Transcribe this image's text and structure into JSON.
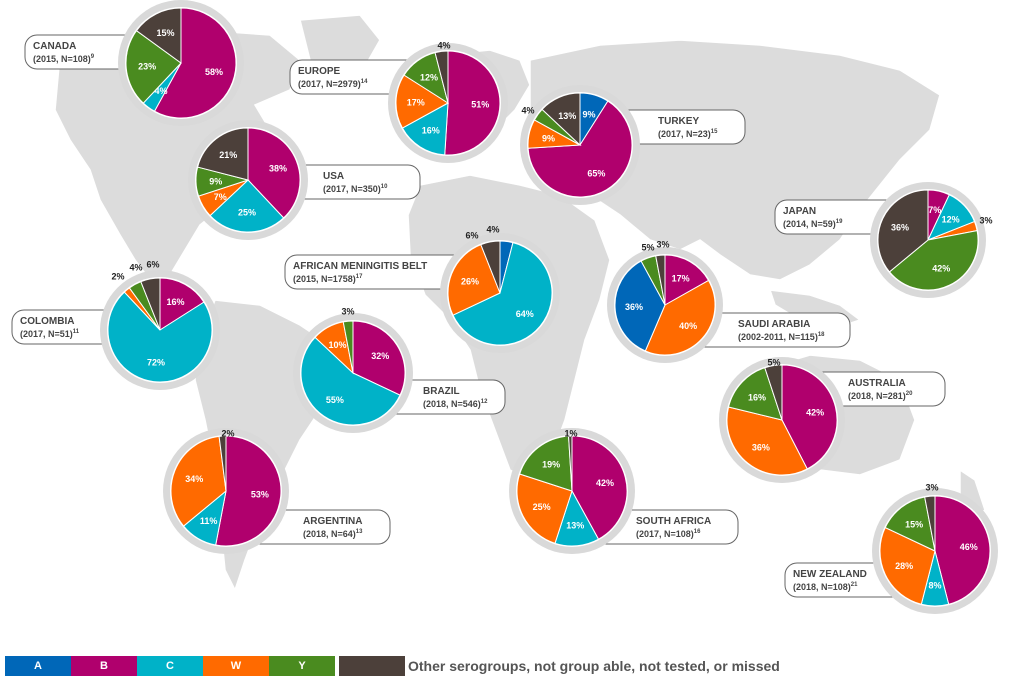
{
  "colors": {
    "A": "#0067b8",
    "B": "#b0006d",
    "C": "#00b2c8",
    "W": "#ff6a00",
    "Y": "#4a8b1f",
    "Other": "#4c403a"
  },
  "legend": {
    "items": [
      {
        "key": "A",
        "label": "A"
      },
      {
        "key": "B",
        "label": "B"
      },
      {
        "key": "C",
        "label": "C"
      },
      {
        "key": "W",
        "label": "W"
      },
      {
        "key": "Y",
        "label": "Y"
      },
      {
        "key": "Other",
        "label": ""
      }
    ],
    "other_text": "Other serogroups, not group able, not tested, or missed"
  },
  "chart_data": [
    {
      "type": "pie",
      "name": "CANADA",
      "subtitle": "(2015, N=108)",
      "sup": "9",
      "slices": [
        {
          "key": "B",
          "value": 58
        },
        {
          "key": "C",
          "value": 4
        },
        {
          "key": "Y",
          "value": 23
        },
        {
          "key": "Other",
          "value": 15
        }
      ]
    },
    {
      "type": "pie",
      "name": "EUROPE",
      "subtitle": "(2017, N=2979)",
      "sup": "14",
      "slices": [
        {
          "key": "B",
          "value": 51
        },
        {
          "key": "C",
          "value": 16
        },
        {
          "key": "W",
          "value": 17
        },
        {
          "key": "Y",
          "value": 12
        },
        {
          "key": "Other",
          "value": 4
        }
      ]
    },
    {
      "type": "pie",
      "name": "TURKEY",
      "subtitle": "(2017, N=23)",
      "sup": "15",
      "slices": [
        {
          "key": "A",
          "value": 9
        },
        {
          "key": "B",
          "value": 65
        },
        {
          "key": "W",
          "value": 9
        },
        {
          "key": "Y",
          "value": 4
        },
        {
          "key": "Other",
          "value": 13
        }
      ]
    },
    {
      "type": "pie",
      "name": "USA",
      "subtitle": "(2017, N=350)",
      "sup": "10",
      "slices": [
        {
          "key": "B",
          "value": 38
        },
        {
          "key": "C",
          "value": 25
        },
        {
          "key": "W",
          "value": 7
        },
        {
          "key": "Y",
          "value": 9
        },
        {
          "key": "Other",
          "value": 21
        }
      ]
    },
    {
      "type": "pie",
      "name": "JAPAN",
      "subtitle": "(2014, N=59)",
      "sup": "19",
      "slices": [
        {
          "key": "B",
          "value": 7
        },
        {
          "key": "C",
          "value": 12
        },
        {
          "key": "W",
          "value": 3
        },
        {
          "key": "Y",
          "value": 42
        },
        {
          "key": "Other",
          "value": 36
        }
      ]
    },
    {
      "type": "pie",
      "name": "AFRICAN MENINGITIS BELT",
      "subtitle": "(2015, N=1758)",
      "sup": "17",
      "slices": [
        {
          "key": "A",
          "value": 4
        },
        {
          "key": "C",
          "value": 64
        },
        {
          "key": "W",
          "value": 26
        },
        {
          "key": "Other",
          "value": 6
        }
      ]
    },
    {
      "type": "pie",
      "name": "COLOMBIA",
      "subtitle": "(2017, N=51)",
      "sup": "11",
      "slices": [
        {
          "key": "B",
          "value": 16
        },
        {
          "key": "C",
          "value": 72
        },
        {
          "key": "W",
          "value": 2
        },
        {
          "key": "Y",
          "value": 4
        },
        {
          "key": "Other",
          "value": 6
        }
      ]
    },
    {
      "type": "pie",
      "name": "SAUDI ARABIA",
      "subtitle": "(2002-2011, N=115)",
      "sup": "18",
      "slices": [
        {
          "key": "B",
          "value": 17
        },
        {
          "key": "W",
          "value": 40
        },
        {
          "key": "A",
          "value": 36
        },
        {
          "key": "Y",
          "value": 5
        },
        {
          "key": "Other",
          "value": 3
        }
      ]
    },
    {
      "type": "pie",
      "name": "BRAZIL",
      "subtitle": "(2018, N=546)",
      "sup": "12",
      "slices": [
        {
          "key": "B",
          "value": 32
        },
        {
          "key": "C",
          "value": 55
        },
        {
          "key": "W",
          "value": 10
        },
        {
          "key": "Y",
          "value": 3
        }
      ]
    },
    {
      "type": "pie",
      "name": "AUSTRALIA",
      "subtitle": "(2018, N=281)",
      "sup": "20",
      "slices": [
        {
          "key": "B",
          "value": 42
        },
        {
          "key": "W",
          "value": 36
        },
        {
          "key": "Y",
          "value": 16
        },
        {
          "key": "Other",
          "value": 5
        }
      ]
    },
    {
      "type": "pie",
      "name": "ARGENTINA",
      "subtitle": "(2018, N=64)",
      "sup": "13",
      "slices": [
        {
          "key": "B",
          "value": 53
        },
        {
          "key": "C",
          "value": 11
        },
        {
          "key": "W",
          "value": 34
        },
        {
          "key": "Other",
          "value": 2
        }
      ]
    },
    {
      "type": "pie",
      "name": "SOUTH AFRICA",
      "subtitle": "(2017, N=108)",
      "sup": "16",
      "slices": [
        {
          "key": "B",
          "value": 42
        },
        {
          "key": "C",
          "value": 13
        },
        {
          "key": "W",
          "value": 25
        },
        {
          "key": "Y",
          "value": 19
        },
        {
          "key": "Other",
          "value": 1
        }
      ]
    },
    {
      "type": "pie",
      "name": "NEW ZEALAND",
      "subtitle": "(2018, N=108)",
      "sup": "21",
      "slices": [
        {
          "key": "B",
          "value": 46
        },
        {
          "key": "C",
          "value": 8
        },
        {
          "key": "W",
          "value": 28
        },
        {
          "key": "Y",
          "value": 15
        },
        {
          "key": "Other",
          "value": 3
        }
      ]
    }
  ]
}
